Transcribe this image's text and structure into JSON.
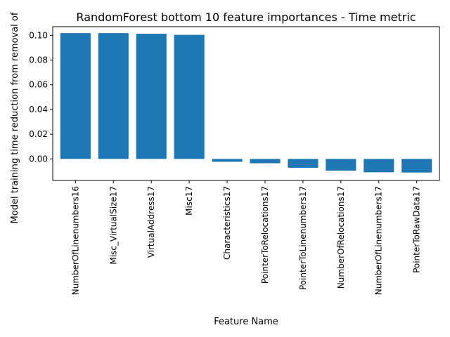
{
  "chart_data": {
    "type": "bar",
    "title": "RandomForest bottom 10 feature importances - Time metric",
    "xlabel": "Feature Name",
    "ylabel": "Model training time reduction from removal of",
    "categories": [
      "NumberOfLinenumbers16",
      "Misc_VirtualSize17",
      "VirtualAddress17",
      "Misc17",
      "Characteristics17",
      "PointerToRelocations17",
      "PointerToLinenumbers17",
      "NumberOfRelocations17",
      "NumberOfLinenumbers17",
      "PointerToRawData17"
    ],
    "values": [
      0.1018,
      0.1018,
      0.1013,
      0.1004,
      -0.0023,
      -0.0035,
      -0.0072,
      -0.0095,
      -0.0108,
      -0.011
    ],
    "yticks": [
      0.0,
      0.02,
      0.04,
      0.06,
      0.08,
      0.1
    ],
    "ytick_labels": [
      "0.00",
      "0.02",
      "0.04",
      "0.06",
      "0.08",
      "0.10"
    ],
    "ylim": [
      -0.0174,
      0.107
    ],
    "grid": false,
    "legend": "none",
    "bar_color": "#1f77b4"
  }
}
